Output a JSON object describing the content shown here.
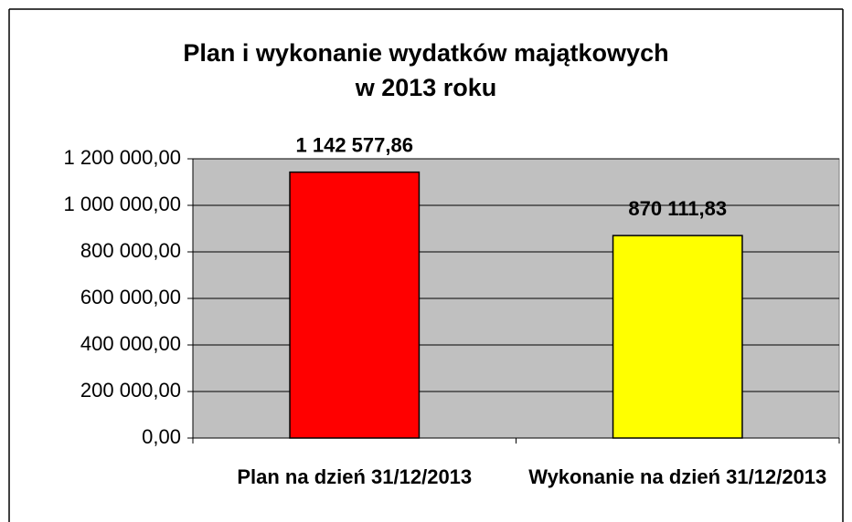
{
  "chart_data": {
    "type": "bar",
    "title": [
      "Plan i wykonanie wydatków majątkowych",
      "w 2013 roku"
    ],
    "categories": [
      "Plan na dzień 31/12/2013",
      "Wykonanie na dzień 31/12/2013"
    ],
    "values": [
      1142577.86,
      870111.83
    ],
    "value_labels": [
      "1 142 577,86",
      "870 111,83"
    ],
    "colors": [
      "#ff0000",
      "#ffff00"
    ],
    "ylim": [
      0,
      1200000
    ],
    "yticks": [
      {
        "value": 0,
        "label": "0,00"
      },
      {
        "value": 200000,
        "label": "200 000,00"
      },
      {
        "value": 400000,
        "label": "400 000,00"
      },
      {
        "value": 600000,
        "label": "600 000,00"
      },
      {
        "value": 800000,
        "label": "800 000,00"
      },
      {
        "value": 1000000,
        "label": "1 000 000,00"
      },
      {
        "value": 1200000,
        "label": "1 200 000,00"
      }
    ],
    "grid": true
  }
}
